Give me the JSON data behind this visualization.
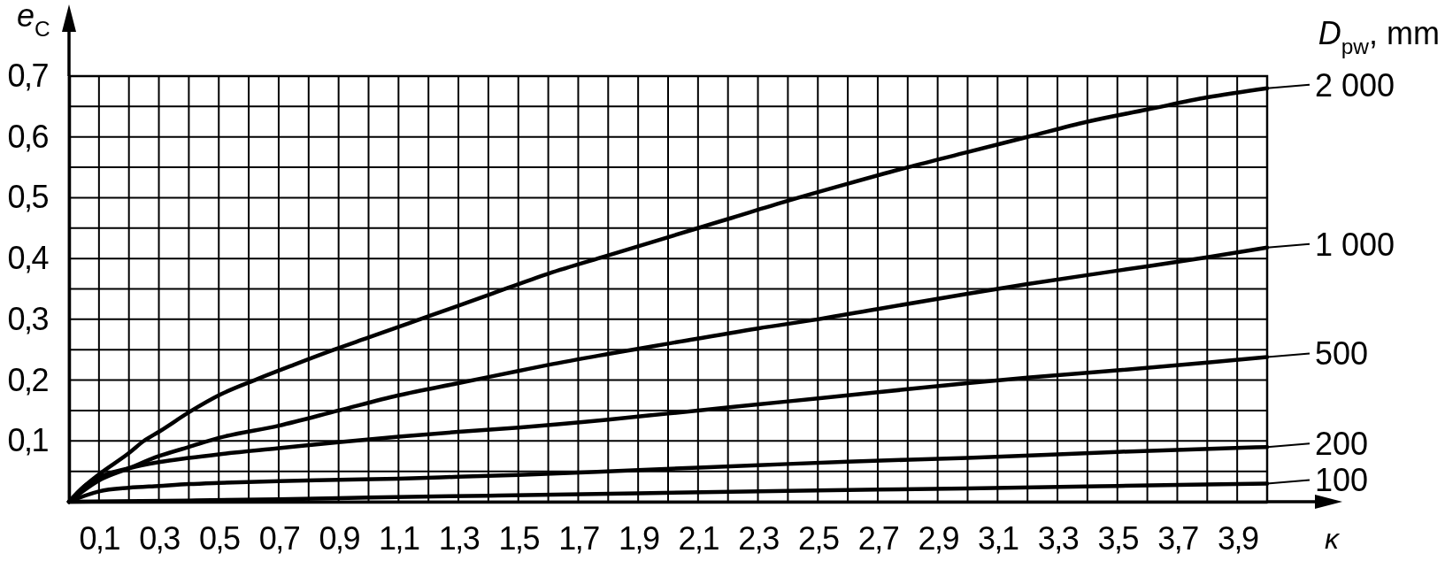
{
  "chart_data": {
    "type": "line",
    "xlabel": "κ",
    "ylabel": "e$_{C}$",
    "legend_title": "D$_{pw}$, mm",
    "legend": "right",
    "xlim": [
      0,
      4
    ],
    "ylim": [
      0,
      0.7
    ],
    "xticks": [
      {
        "value": 0.1,
        "label": "0,1"
      },
      {
        "value": 0.2,
        "label": null
      },
      {
        "value": 0.3,
        "label": "0,3"
      },
      {
        "value": 0.4,
        "label": null
      },
      {
        "value": 0.5,
        "label": "0,5"
      },
      {
        "value": 0.6,
        "label": null
      },
      {
        "value": 0.7,
        "label": "0,7"
      },
      {
        "value": 0.8,
        "label": null
      },
      {
        "value": 0.9,
        "label": "0,9"
      },
      {
        "value": 1.0,
        "label": null
      },
      {
        "value": 1.1,
        "label": "1,1"
      },
      {
        "value": 1.2,
        "label": null
      },
      {
        "value": 1.3,
        "label": "1,3"
      },
      {
        "value": 1.4,
        "label": null
      },
      {
        "value": 1.5,
        "label": "1,5"
      },
      {
        "value": 1.6,
        "label": null
      },
      {
        "value": 1.7,
        "label": "1,7"
      },
      {
        "value": 1.8,
        "label": null
      },
      {
        "value": 1.9,
        "label": "1,9"
      },
      {
        "value": 2.0,
        "label": null
      },
      {
        "value": 2.1,
        "label": "2,1"
      },
      {
        "value": 2.2,
        "label": null
      },
      {
        "value": 2.3,
        "label": "2,3"
      },
      {
        "value": 2.4,
        "label": null
      },
      {
        "value": 2.5,
        "label": "2,5"
      },
      {
        "value": 2.6,
        "label": null
      },
      {
        "value": 2.7,
        "label": "2,7"
      },
      {
        "value": 2.8,
        "label": null
      },
      {
        "value": 2.9,
        "label": "2,9"
      },
      {
        "value": 3.0,
        "label": null
      },
      {
        "value": 3.1,
        "label": "3,1"
      },
      {
        "value": 3.2,
        "label": null
      },
      {
        "value": 3.3,
        "label": "3,3"
      },
      {
        "value": 3.4,
        "label": null
      },
      {
        "value": 3.5,
        "label": "3,5"
      },
      {
        "value": 3.6,
        "label": null
      },
      {
        "value": 3.7,
        "label": "3,7"
      },
      {
        "value": 3.8,
        "label": null
      },
      {
        "value": 3.9,
        "label": "3,9"
      }
    ],
    "yticks": [
      {
        "value": 0.05,
        "label": null
      },
      {
        "value": 0.1,
        "label": "0,1"
      },
      {
        "value": 0.15,
        "label": null
      },
      {
        "value": 0.2,
        "label": "0,2"
      },
      {
        "value": 0.25,
        "label": null
      },
      {
        "value": 0.3,
        "label": "0,3"
      },
      {
        "value": 0.35,
        "label": null
      },
      {
        "value": 0.4,
        "label": "0,4"
      },
      {
        "value": 0.45,
        "label": null
      },
      {
        "value": 0.5,
        "label": "0,5"
      },
      {
        "value": 0.55,
        "label": null
      },
      {
        "value": 0.6,
        "label": "0,6"
      },
      {
        "value": 0.65,
        "label": null
      },
      {
        "value": 0.7,
        "label": "0,7"
      }
    ],
    "grid": true,
    "series": [
      {
        "name": "2 000",
        "color": "#000000",
        "x": [
          0,
          0.05,
          0.1,
          0.2,
          0.25,
          0.3,
          0.41,
          0.5,
          0.62,
          0.75,
          0.885,
          1.0,
          1.2,
          1.4,
          1.6,
          1.8,
          2.0,
          2.2,
          2.4,
          2.6,
          2.8,
          3.0,
          3.2,
          3.4,
          3.6,
          3.8,
          4.0
        ],
        "values": [
          0,
          0.025,
          0.045,
          0.08,
          0.1,
          0.115,
          0.15,
          0.175,
          0.2,
          0.225,
          0.25,
          0.27,
          0.305,
          0.34,
          0.375,
          0.405,
          0.435,
          0.465,
          0.495,
          0.523,
          0.55,
          0.575,
          0.6,
          0.625,
          0.645,
          0.665,
          0.68
        ]
      },
      {
        "name": "1 000",
        "color": "#000000",
        "x": [
          0,
          0.1,
          0.2,
          0.3,
          0.4,
          0.5,
          0.7,
          0.9,
          1.1,
          1.3,
          1.5,
          1.6,
          1.8,
          2.0,
          2.3,
          2.5,
          2.7,
          3.0,
          3.2,
          3.5,
          3.8,
          4.0
        ],
        "values": [
          0,
          0.035,
          0.055,
          0.075,
          0.09,
          0.105,
          0.125,
          0.15,
          0.175,
          0.195,
          0.215,
          0.225,
          0.243,
          0.26,
          0.285,
          0.3,
          0.317,
          0.342,
          0.358,
          0.38,
          0.402,
          0.418
        ]
      },
      {
        "name": "500",
        "color": "#000000",
        "x": [
          0,
          0.05,
          0.1,
          0.2,
          0.3,
          0.4,
          0.5,
          0.7,
          0.9,
          1.1,
          1.3,
          1.5,
          1.8,
          2.0,
          2.3,
          2.5,
          2.7,
          3.0,
          3.2,
          3.5,
          3.8,
          4.0
        ],
        "values": [
          0,
          0.025,
          0.04,
          0.055,
          0.065,
          0.072,
          0.078,
          0.088,
          0.098,
          0.107,
          0.115,
          0.122,
          0.135,
          0.145,
          0.16,
          0.17,
          0.18,
          0.195,
          0.204,
          0.216,
          0.229,
          0.238
        ]
      },
      {
        "name": "200",
        "color": "#000000",
        "x": [
          0,
          0.1,
          0.2,
          0.3,
          0.4,
          0.5,
          0.7,
          0.9,
          1.1,
          1.3,
          1.5,
          1.9,
          2.3,
          2.6,
          3.0,
          3.5,
          4.0
        ],
        "values": [
          0,
          0.017,
          0.023,
          0.026,
          0.029,
          0.031,
          0.034,
          0.036,
          0.038,
          0.041,
          0.044,
          0.052,
          0.06,
          0.066,
          0.072,
          0.082,
          0.09
        ]
      },
      {
        "name": "100",
        "color": "#000000",
        "x": [
          0,
          0.4,
          0.7,
          1.0,
          1.4,
          1.9,
          2.4,
          3.0,
          3.5,
          4.0
        ],
        "values": [
          0,
          0.002,
          0.004,
          0.007,
          0.01,
          0.014,
          0.018,
          0.022,
          0.026,
          0.03
        ]
      }
    ]
  }
}
